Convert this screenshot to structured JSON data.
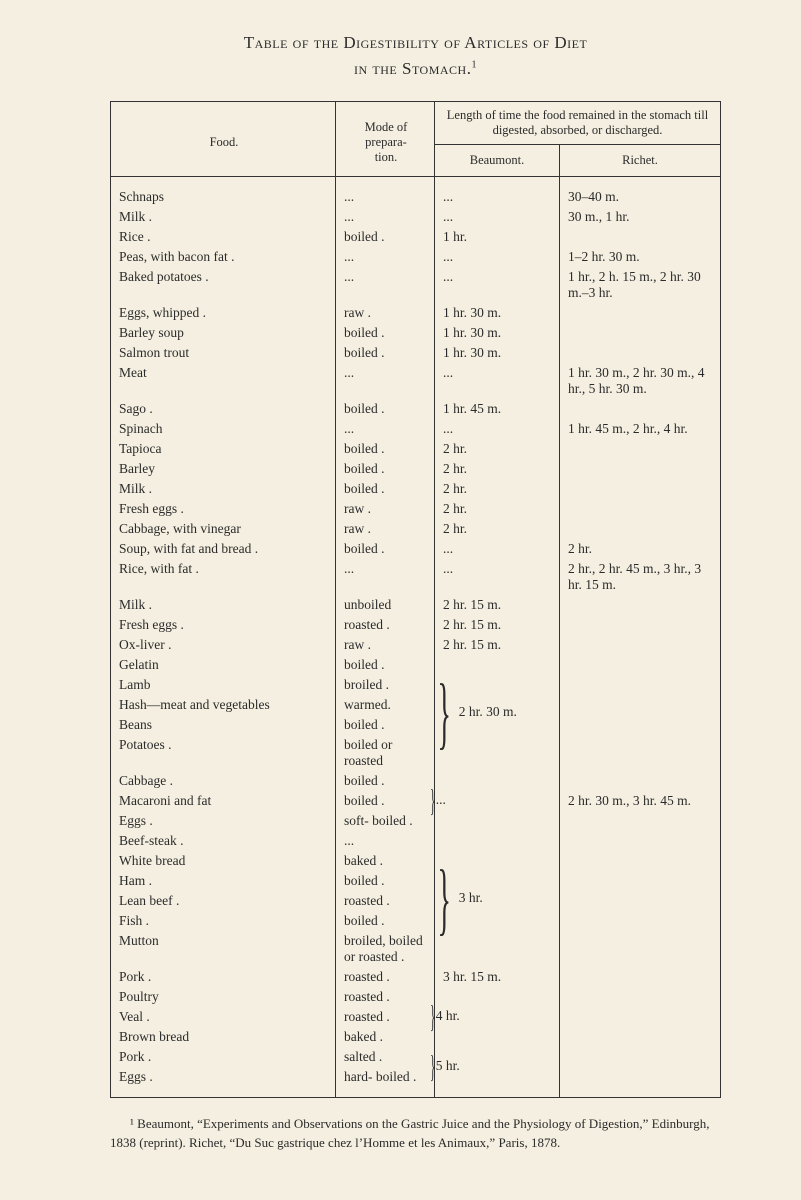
{
  "title_line1": "Table of the Digestibility of Articles of Diet",
  "title_line2": "in the Stomach.",
  "title_footmark": "1",
  "headers": {
    "food": "Food.",
    "mode": "Mode of prepara-tion.",
    "length_top": "Length of time the food remained in the stomach till digested, absorbed, or discharged.",
    "beaumont": "Beaumont.",
    "richet": "Richet."
  },
  "rows": [
    {
      "food": "Schnaps",
      "mode": "...",
      "beau": "...",
      "rich": "30–40 m."
    },
    {
      "food": "Milk .",
      "mode": "...",
      "beau": "...",
      "rich": "30 m., 1 hr."
    },
    {
      "food": "Rice .",
      "mode": "boiled .",
      "beau": "1 hr.",
      "rich": ""
    },
    {
      "food": "Peas, with bacon fat .",
      "mode": "...",
      "beau": "...",
      "rich": "1–2 hr. 30 m."
    },
    {
      "food": "Baked potatoes .",
      "mode": "...",
      "beau": "...",
      "rich": "1 hr., 2 h. 15 m., 2 hr. 30 m.–3 hr."
    },
    {
      "food": "Eggs, whipped .",
      "mode": "raw   .",
      "beau": "1 hr. 30 m.",
      "rich": ""
    },
    {
      "food": "Barley soup",
      "mode": "boiled .",
      "beau": "1 hr. 30 m.",
      "rich": ""
    },
    {
      "food": "Salmon trout",
      "mode": "boiled .",
      "beau": "1 hr. 30 m.",
      "rich": ""
    },
    {
      "food": "Meat",
      "mode": "...",
      "beau": "...",
      "rich": "1 hr. 30 m., 2 hr. 30 m., 4 hr., 5 hr. 30 m."
    },
    {
      "food": "Sago .",
      "mode": "boiled .",
      "beau": "1 hr. 45 m.",
      "rich": ""
    },
    {
      "food": "Spinach",
      "mode": "...",
      "beau": "...",
      "rich": "1 hr. 45 m., 2 hr., 4 hr."
    },
    {
      "food": "Tapioca",
      "mode": "boiled .",
      "beau": "2 hr.",
      "rich": ""
    },
    {
      "food": "Barley",
      "mode": "boiled .",
      "beau": "2 hr.",
      "rich": ""
    },
    {
      "food": "Milk .",
      "mode": "boiled .",
      "beau": "2 hr.",
      "rich": ""
    },
    {
      "food": "Fresh eggs .",
      "mode": "raw   .",
      "beau": "2 hr.",
      "rich": ""
    },
    {
      "food": "Cabbage, with vinegar",
      "mode": "raw   .",
      "beau": "2 hr.",
      "rich": ""
    },
    {
      "food": "Soup, with fat and bread .",
      "mode": "boiled .",
      "beau": "...",
      "rich": "2 hr."
    },
    {
      "food": "Rice, with fat .",
      "mode": "...",
      "beau": "...",
      "rich": "2 hr., 2 hr. 45 m., 3 hr., 3 hr. 15 m."
    },
    {
      "food": "Milk .",
      "mode": "unboiled",
      "beau": "2 hr. 15 m.",
      "rich": ""
    },
    {
      "food": "Fresh eggs .",
      "mode": "roasted .",
      "beau": "2 hr. 15 m.",
      "rich": ""
    },
    {
      "food": "Ox-liver .",
      "mode": "raw   .",
      "beau": "2 hr. 15 m.",
      "rich": ""
    }
  ],
  "group1": {
    "items": [
      {
        "food": "Gelatin",
        "mode": "boiled ."
      },
      {
        "food": "Lamb",
        "mode": "broiled ."
      },
      {
        "food": "Hash—meat and vegetables",
        "mode": "warmed."
      },
      {
        "food": "Beans",
        "mode": "boiled ."
      },
      {
        "food": "Potatoes .",
        "mode": "boiled or roasted"
      }
    ],
    "beau": "2 hr. 30 m."
  },
  "group2": {
    "items": [
      {
        "food": "Cabbage .",
        "mode": "boiled ."
      },
      {
        "food": "Macaroni and fat",
        "mode": "boiled ."
      },
      {
        "food": "Eggs .",
        "mode": "soft-  boiled ."
      }
    ],
    "beau": "...",
    "rich": "2 hr. 30 m., 3 hr. 45 m."
  },
  "group3": {
    "items": [
      {
        "food": "Beef-steak .",
        "mode": "..."
      },
      {
        "food": "White bread",
        "mode": "baked ."
      },
      {
        "food": "Ham .",
        "mode": "boiled ."
      },
      {
        "food": "Lean beef .",
        "mode": "roasted ."
      },
      {
        "food": "Fish .",
        "mode": "boiled ."
      },
      {
        "food": "Mutton",
        "mode": "broiled, boiled or roasted ."
      }
    ],
    "beau": "3 hr."
  },
  "rows2": [
    {
      "food": "Pork .",
      "mode": "roasted .",
      "beau": "3 hr. 15 m.",
      "rich": ""
    }
  ],
  "group4": {
    "items": [
      {
        "food": "Poultry",
        "mode": "roasted ."
      },
      {
        "food": "Veal .",
        "mode": "roasted ."
      },
      {
        "food": "Brown bread",
        "mode": "baked ."
      }
    ],
    "beau": "4 hr."
  },
  "group5": {
    "items": [
      {
        "food": "Pork .",
        "mode": "salted ."
      },
      {
        "food": "Eggs .",
        "mode": "hard-  boiled ."
      }
    ],
    "beau": "5 hr."
  },
  "footnote": "¹ Beaumont, “Experiments and Observations on the Gastric Juice and the Physiology of Digestion,” Edinburgh, 1838 (reprint). Richet, “Du Suc gastrique chez l’Homme et les Animaux,” Paris, 1878."
}
